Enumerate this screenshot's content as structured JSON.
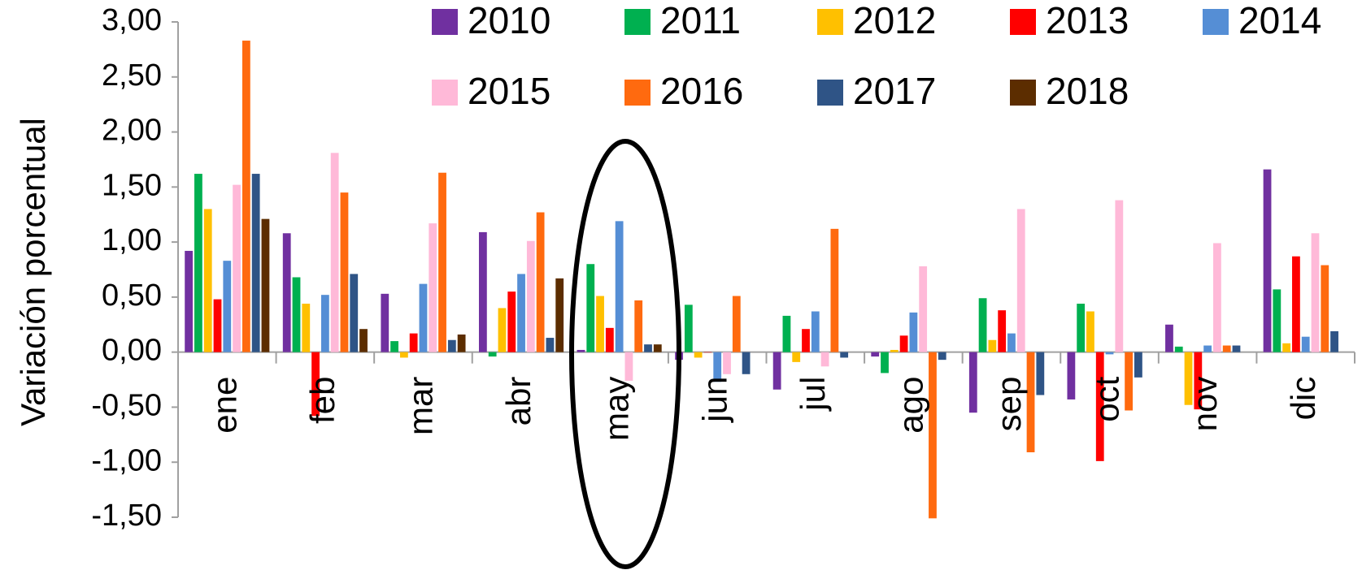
{
  "chart_data": {
    "type": "bar",
    "y_label": "Variación porcentual",
    "categories": [
      "ene",
      "feb",
      "mar",
      "abr",
      "may",
      "jun",
      "jul",
      "ago",
      "sep",
      "oct",
      "nov",
      "dic"
    ],
    "series": [
      {
        "name": "2010",
        "color": "#7030a0",
        "values": [
          0.92,
          1.08,
          0.53,
          1.09,
          0.02,
          -0.07,
          -0.34,
          -0.04,
          -0.55,
          -0.43,
          0.25,
          1.66
        ]
      },
      {
        "name": "2011",
        "color": "#00b050",
        "values": [
          1.62,
          0.68,
          0.1,
          -0.04,
          0.8,
          0.43,
          0.33,
          -0.19,
          0.49,
          0.44,
          0.05,
          0.57
        ]
      },
      {
        "name": "2012",
        "color": "#ffc000",
        "values": [
          1.3,
          0.44,
          -0.05,
          0.4,
          0.51,
          -0.05,
          -0.09,
          0.02,
          0.11,
          0.37,
          -0.48,
          0.08
        ]
      },
      {
        "name": "2013",
        "color": "#ff0000",
        "values": [
          0.48,
          -0.58,
          0.17,
          0.55,
          0.22,
          0.0,
          0.21,
          0.15,
          0.38,
          -0.99,
          -0.52,
          0.87
        ]
      },
      {
        "name": "2014",
        "color": "#558ed5",
        "values": [
          0.83,
          0.52,
          0.62,
          0.71,
          1.19,
          -0.27,
          0.37,
          0.36,
          0.17,
          -0.02,
          0.06,
          0.14
        ]
      },
      {
        "name": "2015",
        "color": "#ffb9d8",
        "values": [
          1.52,
          1.81,
          1.17,
          1.01,
          -0.26,
          -0.2,
          -0.13,
          0.78,
          1.3,
          1.38,
          0.99,
          1.08
        ]
      },
      {
        "name": "2016",
        "color": "#ff6a0f",
        "values": [
          2.83,
          1.45,
          1.63,
          1.27,
          0.47,
          0.51,
          1.12,
          -1.51,
          -0.91,
          -0.53,
          0.06,
          0.79
        ]
      },
      {
        "name": "2017",
        "color": "#2f5486",
        "values": [
          1.62,
          0.71,
          0.11,
          0.13,
          0.07,
          -0.2,
          -0.05,
          -0.07,
          -0.39,
          -0.23,
          0.06,
          0.19
        ]
      },
      {
        "name": "2018",
        "color": "#5c2d00",
        "values": [
          1.21,
          0.21,
          0.16,
          0.67,
          0.07,
          null,
          null,
          null,
          null,
          null,
          null,
          null
        ]
      }
    ],
    "ylim": [
      -1.5,
      3.0
    ],
    "yticks": [
      {
        "value": -1.5,
        "label": "-1,50"
      },
      {
        "value": -1.0,
        "label": "-1,00"
      },
      {
        "value": -0.5,
        "label": "-0,50"
      },
      {
        "value": 0,
        "label": "0,00"
      },
      {
        "value": 0.5,
        "label": "0,50"
      },
      {
        "value": 1.0,
        "label": "1,00"
      },
      {
        "value": 1.5,
        "label": "1,50"
      },
      {
        "value": 2.0,
        "label": "2,00"
      },
      {
        "value": 2.5,
        "label": "2,50"
      },
      {
        "value": 3.0,
        "label": "3,00"
      }
    ]
  }
}
